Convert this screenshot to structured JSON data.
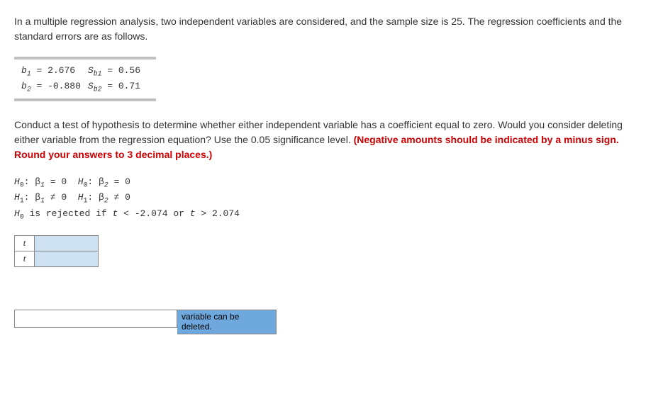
{
  "para1": "In a multiple regression analysis, two independent variables are considered, and the sample size is 25. The regression coefficients and the standard errors are as follows.",
  "coeffs": {
    "b1_label": "b",
    "b1_sub": "1",
    "b1_val": " = 2.676",
    "sb1_label": "S",
    "sb1_sub_b": "b",
    "sb1_sub_1": "1",
    "sb1_val": " = 0.56",
    "b2_label": "b",
    "b2_sub": "2",
    "b2_val": " = -0.880",
    "sb2_label": "S",
    "sb2_sub_b": "b",
    "sb2_sub_2": "2",
    "sb2_val": " = 0.71"
  },
  "para2_a": "Conduct a test of hypothesis to determine whether either independent variable has a coefficient equal to zero. Would you consider deleting either variable from the regression equation? Use the 0.05 significance level. ",
  "para2_b": "(Negative amounts should be indicated by a minus sign. Round your answers to 3 decimal places.)",
  "hyp": {
    "line1": "H0: β1 = 0  H0: β2 = 0",
    "line2": "H1: β1 ≠ 0  H1: β2 ≠ 0",
    "line3": "H0 is rejected if t < -2.074 or t > 2.074"
  },
  "t_label": "t",
  "bottom_label": "variable can be deleted."
}
